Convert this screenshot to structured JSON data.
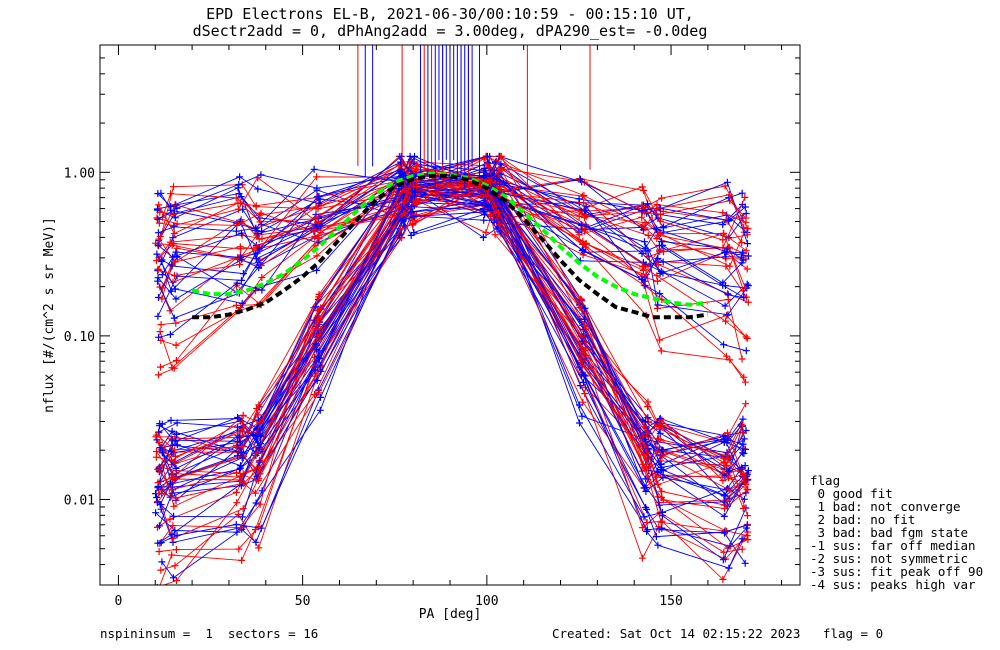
{
  "title": {
    "line1": "EPD Electrons EL-B, 2021-06-30/00:10:59 - 00:15:10 UT,",
    "line2": "dSectr2add = 0, dPhAng2add = 3.00deg, dPA290_est=  -0.0deg"
  },
  "legend": {
    "heading": "flag",
    "items": [
      " 0 good fit",
      " 1 bad: not converge",
      " 2 bad: no fit",
      " 3 bad: bad fgm state",
      "-1 sus: far off median",
      "-2 sus: not symmetric",
      "-3 sus: fit peak off 90",
      "-4 sus: peaks high var"
    ]
  },
  "footer": {
    "left": "nspininsum =  1  sectors = 16",
    "right": "Created: Sat Oct 14 02:15:22 2023   flag = 0"
  },
  "colors": {
    "red": "#ff0000",
    "blue": "#0000ff",
    "green": "#00ff00",
    "black": "#000000"
  },
  "chart_data": {
    "type": "line",
    "xlabel": "PA [deg]",
    "ylabel": "nflux [#/(cm^2 s sr MeV)]",
    "xlim": [
      -5,
      185
    ],
    "ylim": [
      0.003,
      6
    ],
    "yscale": "log",
    "xticks": [
      0,
      50,
      100,
      150
    ],
    "yticks": [
      {
        "value": 0.01,
        "label": "0.01"
      },
      {
        "value": 0.1,
        "label": "0.10"
      },
      {
        "value": 1.0,
        "label": "1.00"
      }
    ],
    "series": [
      {
        "name": "",
        "color": "green",
        "style": "dashed-thick",
        "x": [
          20,
          25,
          30,
          35,
          40,
          45,
          50,
          55,
          60,
          65,
          70,
          75,
          80,
          85,
          90,
          95,
          100,
          105,
          110,
          115,
          120,
          125,
          130,
          135,
          140,
          145,
          150,
          155,
          160
        ],
        "y": [
          0.19,
          0.18,
          0.18,
          0.19,
          0.21,
          0.24,
          0.29,
          0.36,
          0.46,
          0.59,
          0.74,
          0.87,
          0.95,
          0.98,
          0.97,
          0.92,
          0.83,
          0.71,
          0.57,
          0.45,
          0.35,
          0.28,
          0.23,
          0.2,
          0.18,
          0.17,
          0.16,
          0.155,
          0.16
        ]
      },
      {
        "name": "",
        "color": "black",
        "style": "dashed-thick",
        "x": [
          20,
          25,
          30,
          35,
          40,
          45,
          50,
          55,
          60,
          65,
          70,
          75,
          80,
          85,
          90,
          95,
          100,
          105,
          110,
          115,
          120,
          125,
          130,
          135,
          140,
          145,
          150,
          155,
          160
        ],
        "y": [
          0.13,
          0.13,
          0.135,
          0.145,
          0.16,
          0.19,
          0.23,
          0.29,
          0.39,
          0.52,
          0.68,
          0.82,
          0.91,
          0.95,
          0.95,
          0.9,
          0.8,
          0.67,
          0.52,
          0.39,
          0.29,
          0.22,
          0.18,
          0.15,
          0.14,
          0.13,
          0.13,
          0.13,
          0.135
        ]
      }
    ],
    "pa_bins": [
      11,
      15,
      33,
      38,
      54,
      77,
      80,
      100,
      103,
      126,
      143,
      147,
      165,
      170
    ],
    "spike_x": {
      "red": [
        65,
        77,
        83,
        85,
        88,
        90,
        93,
        95,
        111,
        128
      ],
      "blue": [
        67,
        69,
        82,
        84,
        86,
        87,
        88,
        89,
        90,
        91,
        92,
        93,
        94,
        95,
        96,
        98
      ]
    }
  }
}
